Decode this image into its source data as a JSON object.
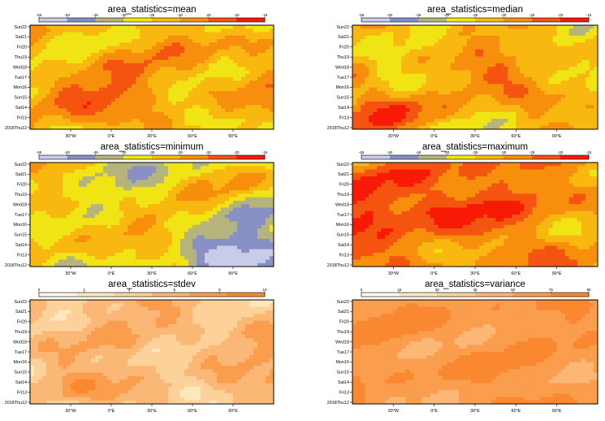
{
  "palettes": {
    "cool_warm": [
      "#c8cce8",
      "#8890c4",
      "#b4b47c",
      "#f0e414",
      "#f8b810",
      "#f78e0c",
      "#f45410",
      "#f81a04"
    ],
    "spread": [
      "#fefae6",
      "#fde7bc",
      "#fcd29a",
      "#fbb775",
      "#fa9d4c",
      "#f98830"
    ]
  },
  "y_ticks": [
    {
      "label": "Sun22",
      "color": "#e00000"
    },
    {
      "label": "Sat21",
      "color": "#000000"
    },
    {
      "label": "Fri20",
      "color": "#000000"
    },
    {
      "label": "Thu19",
      "color": "#000000"
    },
    {
      "label": "Wed18",
      "color": "#000000"
    },
    {
      "label": "Tue17",
      "color": "#000000"
    },
    {
      "label": "Mon16",
      "color": "#000000"
    },
    {
      "label": "Sun15",
      "color": "#e00000"
    },
    {
      "label": "Sat14",
      "color": "#000000"
    },
    {
      "label": "Fri13",
      "color": "#000000"
    },
    {
      "label": "2018Thu12",
      "color": "#000000"
    }
  ],
  "x_ticks": [
    "30°W",
    "0°E",
    "30°E",
    "60°E",
    "90°E"
  ],
  "x_tick_lon": [
    -30,
    0,
    30,
    60,
    90
  ],
  "lon_range": [
    -60,
    120
  ],
  "chart_data": [
    {
      "type": "heatmap",
      "title": "area_statistics=mean",
      "palette": "cool_warm",
      "colorbar_ticks": [
        "-55",
        "-50",
        "-45",
        "-40",
        "-35",
        "-30",
        "-25",
        "-20",
        "-15"
      ],
      "field": {
        "base": 4.6,
        "amp": 1.35,
        "seed": 3,
        "hot_band": {
          "strength": 1.5,
          "center_lon": -20,
          "center_day": 2.8,
          "slope": 0.035,
          "width": 1.8
        }
      }
    },
    {
      "type": "heatmap",
      "title": "area_statistics=median",
      "palette": "cool_warm",
      "colorbar_ticks": [
        "-55",
        "-50",
        "-45",
        "-40",
        "-35",
        "-30",
        "-25",
        "-20",
        "-15"
      ],
      "field": {
        "base": 4.5,
        "amp": 1.5,
        "seed": 11,
        "hot_band": {
          "strength": 1.4,
          "center_lon": -15,
          "center_day": 2.5,
          "slope": 0.035,
          "width": 1.8
        }
      }
    },
    {
      "type": "heatmap",
      "title": "area_statistics=minimum",
      "palette": "cool_warm",
      "colorbar_ticks": [
        "-55",
        "-50",
        "-45",
        "-40",
        "-35",
        "-30",
        "-25",
        "-20",
        "-15"
      ],
      "field": {
        "base": 3.6,
        "amp": 1.45,
        "seed": 21,
        "hot_band": {
          "strength": 1.5,
          "center_lon": -20,
          "center_day": 2.8,
          "slope": 0.035,
          "width": 1.6
        },
        "cold_corner": {
          "strength": 2.3,
          "center_lon": 95,
          "center_day": 1.5,
          "width_lon": 45,
          "width_day": 3.2
        }
      }
    },
    {
      "type": "heatmap",
      "title": "area_statistics=maximum",
      "palette": "cool_warm",
      "colorbar_ticks": [
        "-55",
        "-50",
        "-45",
        "-40",
        "-35",
        "-30",
        "-25",
        "-20",
        "-15"
      ],
      "field": {
        "base": 5.2,
        "amp": 1.2,
        "seed": 35,
        "hot_band": {
          "strength": 2.2,
          "center_lon": -30,
          "center_day": 5.5,
          "slope": 0.02,
          "width": 3.4
        }
      }
    },
    {
      "type": "heatmap",
      "title": "area_statistics=stdev",
      "palette": "spread",
      "colorbar_ticks": [
        "0",
        "2",
        "4",
        "6",
        "8",
        "10"
      ],
      "field": {
        "base": 3.4,
        "amp": 1.5,
        "seed": 47
      }
    },
    {
      "type": "heatmap",
      "title": "area_statistics=variance",
      "palette": "spread",
      "colorbar_ticks": [
        "0",
        "15",
        "30",
        "45",
        "60",
        "75",
        "90"
      ],
      "field": {
        "base": 4.7,
        "amp": 0.75,
        "seed": 59
      }
    }
  ]
}
